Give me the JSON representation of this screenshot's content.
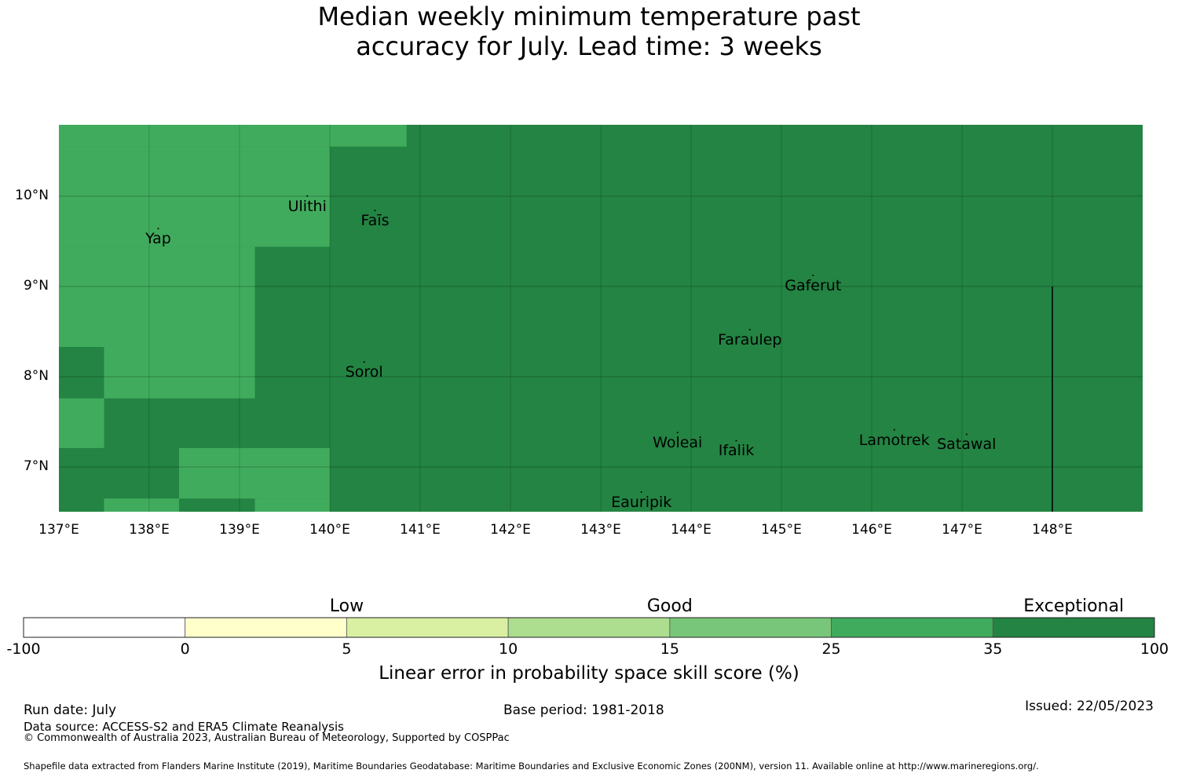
{
  "title": "Median weekly minimum temperature past accuracy for July. Lead time: 3 weeks",
  "title_lines": [
    "Median weekly minimum temperature past",
    "accuracy for July. Lead time: 3 weeks"
  ],
  "map": {
    "lon_range": [
      137,
      149
    ],
    "lat_range": [
      6.5,
      10.8
    ],
    "lon_ticks": [
      {
        "value": 137,
        "label": "137°E"
      },
      {
        "value": 138,
        "label": "138°E"
      },
      {
        "value": 139,
        "label": "139°E"
      },
      {
        "value": 140,
        "label": "140°E"
      },
      {
        "value": 141,
        "label": "141°E"
      },
      {
        "value": 142,
        "label": "142°E"
      },
      {
        "value": 143,
        "label": "143°E"
      },
      {
        "value": 144,
        "label": "144°E"
      },
      {
        "value": 145,
        "label": "145°E"
      },
      {
        "value": 146,
        "label": "146°E"
      },
      {
        "value": 147,
        "label": "147°E"
      },
      {
        "value": 148,
        "label": "148°E"
      }
    ],
    "lat_ticks": [
      {
        "value": 10,
        "label": "10°N"
      },
      {
        "value": 9,
        "label": "9°N"
      },
      {
        "value": 8,
        "label": "8°N"
      },
      {
        "value": 7,
        "label": "7°N"
      }
    ],
    "grid": true,
    "boundary_line": {
      "lon": 148,
      "lat_from": 6.5,
      "lat_to": 9.0
    },
    "background_category": "exceptional",
    "cells": [
      {
        "lon0": 137.0,
        "lon1": 140.85,
        "lat0": 10.55,
        "lat1": 10.8,
        "category": "good_high"
      },
      {
        "lon0": 137.0,
        "lon1": 140.0,
        "lat0": 9.44,
        "lat1": 10.55,
        "category": "good_high"
      },
      {
        "lon0": 137.0,
        "lon1": 139.17,
        "lat0": 7.76,
        "lat1": 9.44,
        "category": "good_high"
      },
      {
        "lon0": 137.0,
        "lon1": 137.5,
        "lat0": 7.76,
        "lat1": 8.33,
        "category": "exceptional"
      },
      {
        "lon0": 137.0,
        "lon1": 137.5,
        "lat0": 7.21,
        "lat1": 7.76,
        "category": "good_high"
      },
      {
        "lon0": 138.33,
        "lon1": 140.0,
        "lat0": 6.65,
        "lat1": 7.21,
        "category": "good_high"
      },
      {
        "lon0": 137.5,
        "lon1": 138.33,
        "lat0": 6.5,
        "lat1": 6.65,
        "category": "good_high"
      },
      {
        "lon0": 139.17,
        "lon1": 140.0,
        "lat0": 6.5,
        "lat1": 6.65,
        "category": "good_high"
      }
    ],
    "islands": [
      {
        "name": "Yap",
        "lon": 138.1,
        "lat": 9.52
      },
      {
        "name": "Ulithi",
        "lon": 139.75,
        "lat": 9.88
      },
      {
        "name": "Faīs",
        "lon": 140.5,
        "lat": 9.72
      },
      {
        "name": "Gaferut",
        "lon": 145.35,
        "lat": 9.0
      },
      {
        "name": "Faraulep",
        "lon": 144.65,
        "lat": 8.4
      },
      {
        "name": "Sorol",
        "lon": 140.38,
        "lat": 8.04
      },
      {
        "name": "Woleai",
        "lon": 143.85,
        "lat": 7.26
      },
      {
        "name": "Ifalik",
        "lon": 144.5,
        "lat": 7.17
      },
      {
        "name": "Lamotrek",
        "lon": 146.25,
        "lat": 7.29
      },
      {
        "name": "Satawal",
        "lon": 147.05,
        "lat": 7.24
      },
      {
        "name": "Eauripik",
        "lon": 143.45,
        "lat": 6.6
      }
    ]
  },
  "colorbar": {
    "bounds": [
      "-100",
      "0",
      "5",
      "10",
      "15",
      "25",
      "35",
      "100"
    ],
    "colors": [
      "#ffffff",
      "#ffffcc",
      "#d9f0a3",
      "#addd8e",
      "#78c679",
      "#41ab5d",
      "#238443"
    ],
    "category_labels": [
      {
        "text": "Low",
        "between": [
          1,
          3
        ]
      },
      {
        "text": "Good",
        "between": [
          3,
          5
        ]
      },
      {
        "text": "Exceptional",
        "between": [
          6,
          7
        ]
      }
    ],
    "axis_title": "Linear error in probability space skill score (%)"
  },
  "category_colors": {
    "exceptional": "#238443",
    "good_high": "#41ab5d"
  },
  "footer": {
    "run_date": "Run date: July",
    "data_source": "Data source: ACCESS-S2 and ERA5 Climate Reanalysis",
    "copyright": "© Commonwealth of Australia 2023, Australian Bureau of Meteorology, Supported by COSPPac",
    "base_period": "Base period: 1981-2018",
    "issued": "Issued: 22/05/2023",
    "shapefile": "Shapefile data extracted from Flanders Marine Institute (2019), Maritime Boundaries Geodatabase: Maritime Boundaries and Exclusive Economic Zones (200NM), version 11. Available online at http://www.marineregions.org/."
  }
}
